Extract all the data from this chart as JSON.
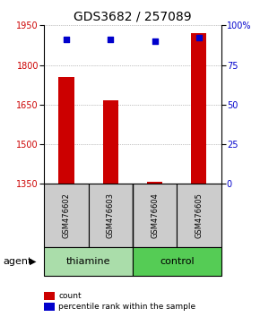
{
  "title": "GDS3682 / 257089",
  "samples": [
    "GSM476602",
    "GSM476603",
    "GSM476604",
    "GSM476605"
  ],
  "count_values": [
    1755,
    1665,
    1357,
    1920
  ],
  "percentile_values": [
    91,
    91,
    90,
    92
  ],
  "ylim_left": [
    1350,
    1950
  ],
  "ylim_right": [
    0,
    100
  ],
  "yticks_left": [
    1350,
    1500,
    1650,
    1800,
    1950
  ],
  "yticks_right": [
    0,
    25,
    50,
    75,
    100
  ],
  "bar_color": "#cc0000",
  "dot_color": "#0000cc",
  "groups": [
    {
      "label": "thiamine",
      "samples": [
        0,
        1
      ],
      "color": "#aaddaa"
    },
    {
      "label": "control",
      "samples": [
        2,
        3
      ],
      "color": "#55cc55"
    }
  ],
  "agent_label": "agent",
  "legend_count_label": "count",
  "legend_pct_label": "percentile rank within the sample",
  "background_color": "#ffffff",
  "sample_box_color": "#cccccc",
  "grid_color": "#888888",
  "bar_width": 0.35,
  "title_fontsize": 10
}
